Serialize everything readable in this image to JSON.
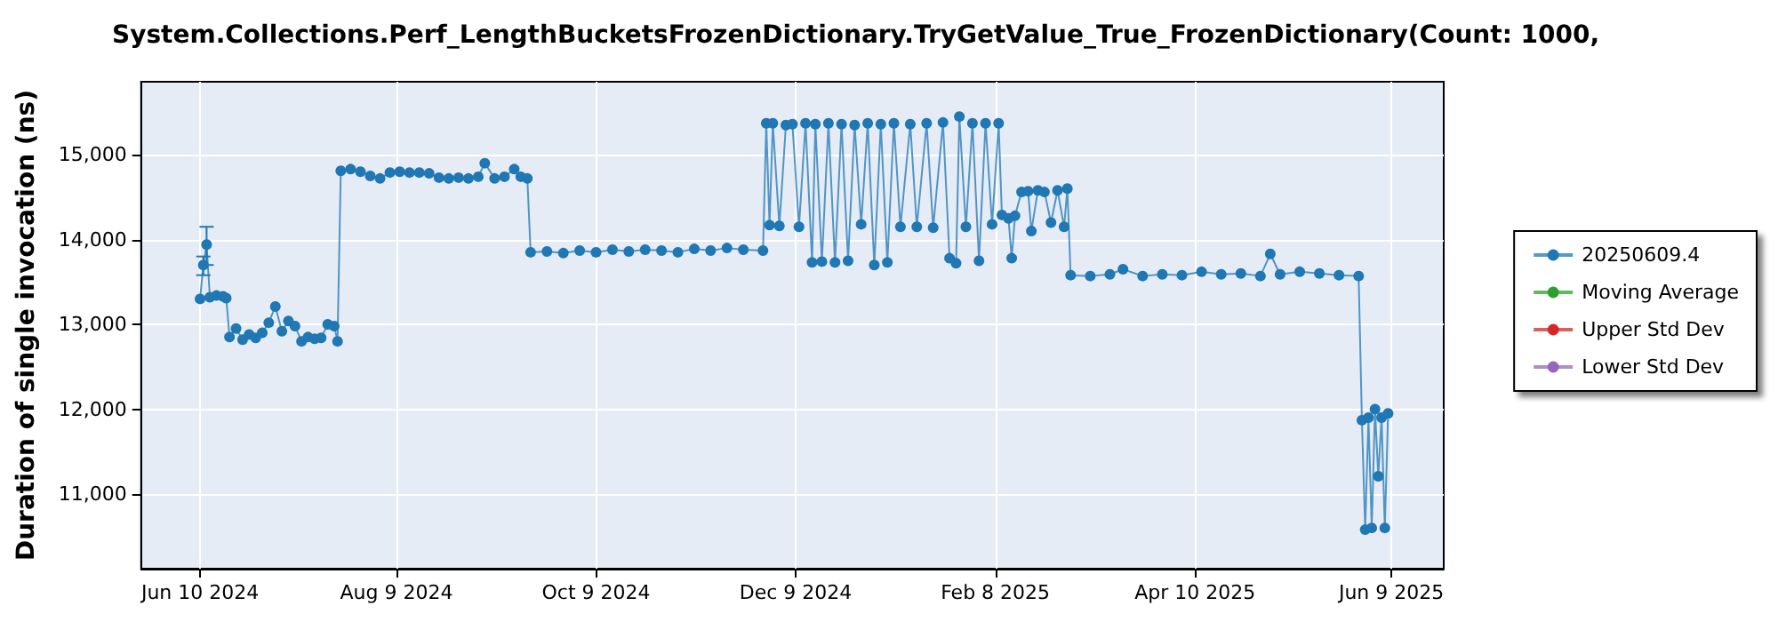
{
  "chart_data": {
    "type": "line",
    "title": "System.Collections.Perf_LengthBucketsFrozenDictionary.TryGetValue_True_FrozenDictionary(Count: 1000,",
    "ylabel": "Duration of single invocation (ns)",
    "xlim": [
      "2024-05-23",
      "2025-06-25"
    ],
    "xticks": [
      {
        "value": "2024-06-10",
        "label": "Jun 10 2024"
      },
      {
        "value": "2024-08-09",
        "label": "Aug 9 2024"
      },
      {
        "value": "2024-10-09",
        "label": "Oct 9 2024"
      },
      {
        "value": "2024-12-09",
        "label": "Dec 9 2024"
      },
      {
        "value": "2025-02-08",
        "label": "Feb 8 2025"
      },
      {
        "value": "2025-04-10",
        "label": "Apr 10 2025"
      },
      {
        "value": "2025-06-09",
        "label": "Jun 9 2025"
      }
    ],
    "ylim": [
      10120,
      15860
    ],
    "yticks": [
      {
        "value": 11000,
        "label": "11,000"
      },
      {
        "value": 12000,
        "label": "12,000"
      },
      {
        "value": 13000,
        "label": "13,000"
      },
      {
        "value": 14000,
        "label": "14,000"
      },
      {
        "value": 15000,
        "label": "15,000"
      }
    ],
    "grid": true,
    "legend": "right",
    "marker": "circle",
    "line_style": "solid",
    "series": [
      {
        "name": "20250609.4",
        "color": "#1f77b4",
        "x": [
          "2024-06-10",
          "2024-06-11",
          "2024-06-12",
          "2024-06-13",
          "2024-06-15",
          "2024-06-17",
          "2024-06-18",
          "2024-06-19",
          "2024-06-21",
          "2024-06-23",
          "2024-06-25",
          "2024-06-27",
          "2024-06-29",
          "2024-07-01",
          "2024-07-03",
          "2024-07-05",
          "2024-07-07",
          "2024-07-09",
          "2024-07-11",
          "2024-07-13",
          "2024-07-15",
          "2024-07-17",
          "2024-07-19",
          "2024-07-21",
          "2024-07-22",
          "2024-07-23",
          "2024-07-26",
          "2024-07-29",
          "2024-08-01",
          "2024-08-04",
          "2024-08-07",
          "2024-08-10",
          "2024-08-13",
          "2024-08-16",
          "2024-08-19",
          "2024-08-22",
          "2024-08-25",
          "2024-08-28",
          "2024-08-31",
          "2024-09-03",
          "2024-09-05",
          "2024-09-08",
          "2024-09-11",
          "2024-09-14",
          "2024-09-16",
          "2024-09-18",
          "2024-09-19",
          "2024-09-24",
          "2024-09-29",
          "2024-10-04",
          "2024-10-09",
          "2024-10-14",
          "2024-10-19",
          "2024-10-24",
          "2024-10-29",
          "2024-11-03",
          "2024-11-08",
          "2024-11-13",
          "2024-11-18",
          "2024-11-23",
          "2024-11-29",
          "2024-11-30",
          "2024-12-01",
          "2024-12-02",
          "2024-12-04",
          "2024-12-06",
          "2024-12-08",
          "2024-12-10",
          "2024-12-12",
          "2024-12-14",
          "2024-12-15",
          "2024-12-17",
          "2024-12-19",
          "2024-12-21",
          "2024-12-23",
          "2024-12-25",
          "2024-12-27",
          "2024-12-29",
          "2024-12-31",
          "2025-01-02",
          "2025-01-04",
          "2025-01-06",
          "2025-01-08",
          "2025-01-10",
          "2025-01-13",
          "2025-01-15",
          "2025-01-18",
          "2025-01-20",
          "2025-01-23",
          "2025-01-25",
          "2025-01-27",
          "2025-01-28",
          "2025-01-30",
          "2025-02-01",
          "2025-02-03",
          "2025-02-05",
          "2025-02-07",
          "2025-02-09",
          "2025-02-10",
          "2025-02-12",
          "2025-02-13",
          "2025-02-14",
          "2025-02-16",
          "2025-02-18",
          "2025-02-19",
          "2025-02-21",
          "2025-02-23",
          "2025-02-25",
          "2025-02-27",
          "2025-03-01",
          "2025-03-02",
          "2025-03-03",
          "2025-03-09",
          "2025-03-15",
          "2025-03-19",
          "2025-03-25",
          "2025-03-31",
          "2025-04-06",
          "2025-04-12",
          "2025-04-18",
          "2025-04-24",
          "2025-04-30",
          "2025-05-03",
          "2025-05-06",
          "2025-05-12",
          "2025-05-18",
          "2025-05-24",
          "2025-05-30",
          "2025-05-31",
          "2025-06-01",
          "2025-06-02",
          "2025-06-03",
          "2025-06-04",
          "2025-06-05",
          "2025-06-06",
          "2025-06-07",
          "2025-06-08"
        ],
        "values": [
          13300,
          13700,
          13940,
          13320,
          13340,
          13330,
          13310,
          12850,
          12950,
          12820,
          12880,
          12840,
          12900,
          13020,
          13210,
          12920,
          13040,
          12980,
          12800,
          12850,
          12830,
          12840,
          13000,
          12980,
          12800,
          14810,
          14830,
          14800,
          14750,
          14720,
          14790,
          14800,
          14790,
          14790,
          14780,
          14730,
          14720,
          14730,
          14720,
          14740,
          14900,
          14720,
          14740,
          14830,
          14740,
          14720,
          13850,
          13860,
          13840,
          13870,
          13850,
          13880,
          13860,
          13880,
          13870,
          13850,
          13890,
          13870,
          13900,
          13880,
          13870,
          15370,
          14170,
          15370,
          14160,
          15350,
          15360,
          14150,
          15370,
          13730,
          15360,
          13740,
          15370,
          13730,
          15360,
          13750,
          15350,
          14180,
          15370,
          13700,
          15360,
          13730,
          15370,
          14150,
          15360,
          14150,
          15370,
          14140,
          15380,
          13780,
          13720,
          15450,
          14150,
          15370,
          13750,
          15370,
          14180,
          15370,
          14290,
          14250,
          13780,
          14280,
          14560,
          14570,
          14100,
          14580,
          14560,
          14200,
          14580,
          14150,
          14600,
          13580,
          13570,
          13590,
          13650,
          13570,
          13590,
          13580,
          13620,
          13590,
          13600,
          13570,
          13830,
          13590,
          13620,
          13600,
          13580,
          13570,
          11870,
          10580,
          11900,
          10600,
          12000,
          11210,
          11900,
          10600,
          11950
        ],
        "errors": [
          null,
          [
            13580,
            13800
          ],
          [
            13700,
            14150
          ],
          null,
          null,
          null,
          null,
          null,
          null,
          null,
          null,
          null,
          null,
          null,
          null,
          null,
          null,
          null,
          null,
          null,
          null,
          null,
          null,
          null,
          null,
          null,
          null,
          null,
          null,
          null,
          null,
          null,
          null,
          null,
          null,
          null,
          null,
          null,
          null,
          null,
          null,
          null,
          null,
          null,
          null,
          null,
          null,
          null,
          null,
          null,
          null,
          null,
          null,
          null,
          null,
          null,
          null,
          null,
          null,
          null,
          null,
          null,
          null,
          null,
          null,
          null,
          null,
          null,
          null,
          null,
          null,
          null,
          null,
          null,
          null,
          null,
          null,
          null,
          null,
          null,
          null,
          null,
          null,
          null,
          null,
          null,
          null,
          null,
          null,
          null,
          null,
          null,
          null,
          null,
          null,
          null,
          null,
          null,
          null,
          null,
          null,
          null,
          null,
          null,
          null,
          null,
          null,
          null,
          null,
          null,
          null,
          null,
          null,
          null,
          null,
          null,
          null,
          null,
          null,
          null,
          null,
          null,
          null,
          null,
          null,
          null,
          null,
          null,
          null,
          null,
          null,
          null,
          null,
          null,
          null,
          null,
          null
        ]
      },
      {
        "name": "Moving Average",
        "color": "#2ca02c"
      },
      {
        "name": "Upper Std Dev",
        "color": "#d62728"
      },
      {
        "name": "Lower Std Dev",
        "color": "#9467bd"
      }
    ]
  }
}
